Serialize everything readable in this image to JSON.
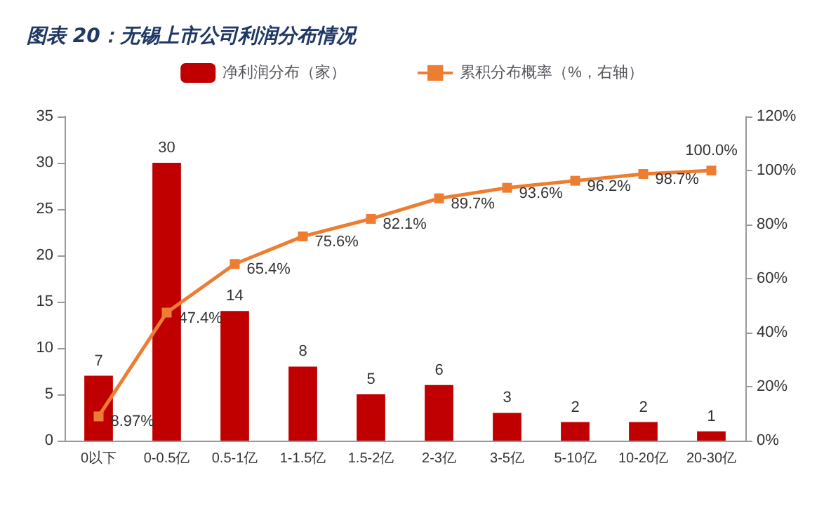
{
  "chart_data": {
    "type": "bar",
    "title": "图表 20：无锡上市公司利润分布情况",
    "categories": [
      "0以下",
      "0-0.5亿",
      "0.5-1亿",
      "1-1.5亿",
      "1.5-2亿",
      "2-3亿",
      "3-5亿",
      "5-10亿",
      "10-20亿",
      "20-30亿"
    ],
    "series": [
      {
        "name": "净利润分布（家）",
        "color": "#c00000",
        "values": [
          7,
          30,
          14,
          8,
          5,
          6,
          3,
          2,
          2,
          1
        ],
        "value_labels": [
          "7",
          "30",
          "14",
          "8",
          "5",
          "6",
          "3",
          "2",
          "2",
          "1"
        ]
      },
      {
        "name": "累积分布概率（%，右轴）",
        "type": "line",
        "axis": "y2",
        "color": "#ed7d31",
        "marker": "square",
        "values": [
          8.97,
          47.4,
          65.4,
          75.6,
          82.1,
          89.7,
          93.6,
          96.2,
          98.7,
          100.0
        ],
        "value_labels": [
          "8.97%",
          "47.4%",
          "65.4%",
          "75.6%",
          "82.1%",
          "89.7%",
          "93.6%",
          "96.2%",
          "98.7%",
          "100.0%"
        ]
      }
    ],
    "ylim": [
      0,
      35
    ],
    "yticks": [
      0,
      5,
      10,
      15,
      20,
      25,
      30,
      35
    ],
    "y2lim": [
      0,
      120
    ],
    "y2ticks": [
      {
        "value": 0,
        "label": "0%"
      },
      {
        "value": 20,
        "label": "20%"
      },
      {
        "value": 40,
        "label": "40%"
      },
      {
        "value": 60,
        "label": "60%"
      },
      {
        "value": 80,
        "label": "80%"
      },
      {
        "value": 100,
        "label": "100%"
      },
      {
        "value": 120,
        "label": "120%"
      }
    ],
    "grid": false,
    "legend": "top"
  }
}
